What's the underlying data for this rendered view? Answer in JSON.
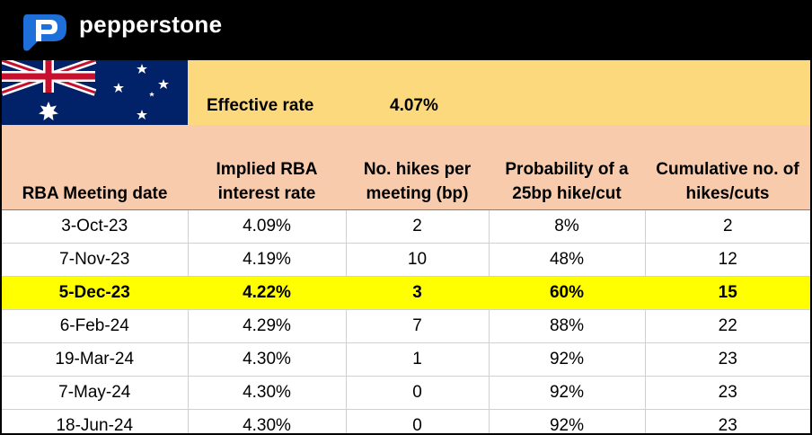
{
  "brand": {
    "name": "pepperstone",
    "logo_icon": "pepperstone-p-logo",
    "bar_color": "#000000",
    "logo_color": "#1e6fd9"
  },
  "flag": {
    "icon": "australia-flag"
  },
  "effective_rate": {
    "label": "Effective rate",
    "value": "4.07%",
    "band_color": "#fcd97c"
  },
  "table": {
    "header_color": "#f8cbad",
    "highlight_color": "#ffff00",
    "columns": [
      "RBA Meeting date",
      "Implied RBA interest rate",
      "No. hikes per meeting (bp)",
      "Probability of a 25bp hike/cut",
      "Cumulative no. of hikes/cuts"
    ],
    "rows": [
      {
        "date": "3-Oct-23",
        "rate": "4.09%",
        "hikes": "2",
        "prob": "8%",
        "cum": "2"
      },
      {
        "date": "7-Nov-23",
        "rate": "4.19%",
        "hikes": "10",
        "prob": "48%",
        "cum": "12"
      },
      {
        "date": "5-Dec-23",
        "rate": "4.22%",
        "hikes": "3",
        "prob": "60%",
        "cum": "15",
        "highlight": true
      },
      {
        "date": "6-Feb-24",
        "rate": "4.29%",
        "hikes": "7",
        "prob": "88%",
        "cum": "22"
      },
      {
        "date": "19-Mar-24",
        "rate": "4.30%",
        "hikes": "1",
        "prob": "92%",
        "cum": "23"
      },
      {
        "date": "7-May-24",
        "rate": "4.30%",
        "hikes": "0",
        "prob": "92%",
        "cum": "23"
      },
      {
        "date": "18-Jun-24",
        "rate": "4.30%",
        "hikes": "0",
        "prob": "92%",
        "cum": "23"
      }
    ]
  }
}
